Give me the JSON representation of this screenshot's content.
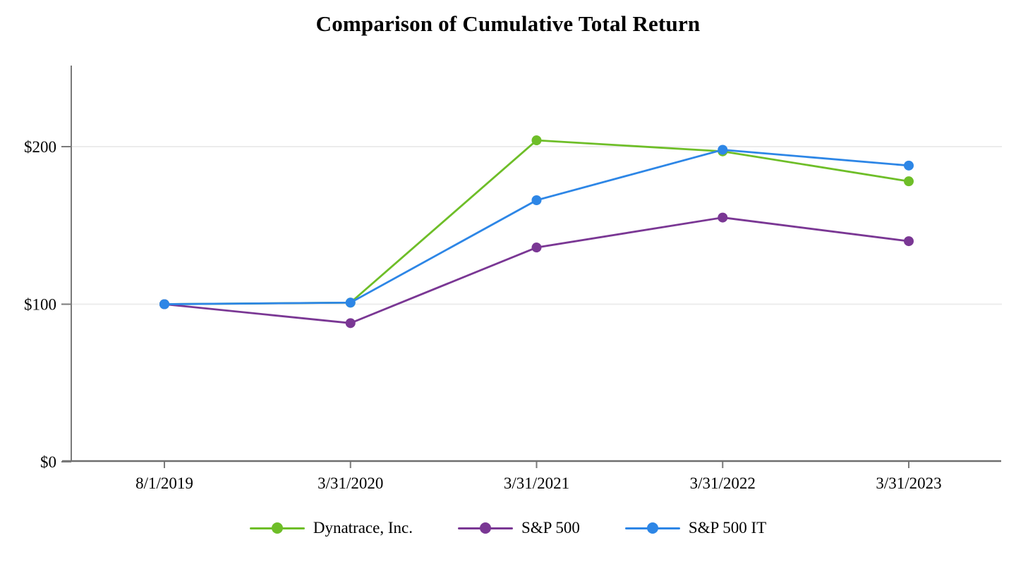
{
  "title": "Comparison of Cumulative Total Return",
  "chart_data": {
    "type": "line",
    "title": "Comparison of Cumulative Total Return",
    "categories": [
      "8/1/2019",
      "3/31/2020",
      "3/31/2021",
      "3/31/2022",
      "3/31/2023"
    ],
    "series": [
      {
        "name": "Dynatrace, Inc.",
        "color": "#6ebe28",
        "values": [
          100,
          101,
          204,
          197,
          178
        ]
      },
      {
        "name": "S&P 500",
        "color": "#7a3794",
        "values": [
          100,
          88,
          136,
          155,
          140
        ]
      },
      {
        "name": "S&P 500 IT",
        "color": "#2d86e6",
        "values": [
          100,
          101,
          166,
          198,
          188
        ]
      }
    ],
    "yticks": [
      {
        "value": 0,
        "label": "$0"
      },
      {
        "value": 100,
        "label": "$100"
      },
      {
        "value": 200,
        "label": "$200"
      }
    ],
    "ylim": [
      0,
      251
    ],
    "grid": "horizontal gridlines at $100 and $200",
    "legend_position": "bottom",
    "colors": {
      "gridline": "#ececec",
      "axis": "#7a7a7a",
      "text": "#000000",
      "background": "#ffffff"
    }
  }
}
